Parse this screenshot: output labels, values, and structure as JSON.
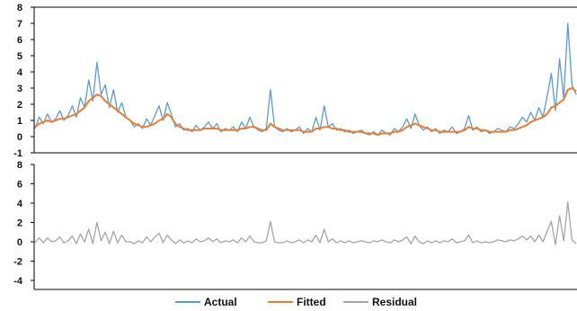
{
  "chart_data": [
    {
      "type": "line",
      "panel": "upper",
      "title": "",
      "xlabel": "",
      "ylabel": "",
      "ylim": [
        -1,
        8
      ],
      "yticks": [
        "8",
        "7",
        "6",
        "5",
        "4",
        "3",
        "2",
        "1",
        "0",
        "-1"
      ],
      "grid": false,
      "series": [
        {
          "name": "Actual",
          "color": "#5B9BD5",
          "values": [
            0.5,
            1.2,
            0.8,
            1.4,
            0.9,
            1.1,
            1.6,
            1.0,
            1.3,
            1.9,
            1.2,
            2.4,
            1.8,
            3.5,
            2.2,
            4.6,
            2.6,
            3.2,
            1.8,
            2.9,
            1.5,
            2.1,
            1.2,
            1.0,
            0.6,
            0.8,
            0.5,
            1.1,
            0.7,
            1.3,
            1.9,
            1.0,
            2.1,
            1.4,
            0.6,
            0.8,
            0.4,
            0.5,
            0.3,
            0.7,
            0.4,
            0.6,
            0.9,
            0.5,
            0.8,
            0.3,
            0.5,
            0.4,
            0.6,
            0.3,
            0.9,
            0.5,
            1.2,
            0.6,
            0.4,
            0.3,
            0.5,
            2.9,
            0.6,
            0.4,
            0.3,
            0.5,
            0.3,
            0.4,
            0.6,
            0.2,
            0.5,
            0.3,
            1.2,
            0.4,
            1.9,
            0.6,
            0.8,
            0.4,
            0.5,
            0.3,
            0.4,
            0.2,
            0.3,
            0.4,
            0.2,
            0.1,
            0.3,
            0.1,
            0.4,
            0.2,
            0.1,
            0.5,
            0.3,
            0.6,
            1.1,
            0.5,
            1.4,
            0.7,
            0.4,
            0.6,
            0.3,
            0.5,
            0.2,
            0.4,
            0.3,
            0.6,
            0.2,
            0.3,
            0.5,
            1.3,
            0.4,
            0.6,
            0.3,
            0.4,
            0.2,
            0.3,
            0.5,
            0.4,
            0.3,
            0.6,
            0.5,
            0.8,
            1.2,
            0.9,
            1.5,
            1.0,
            1.8,
            1.2,
            2.5,
            3.9,
            1.6,
            4.8,
            2.4,
            7.0,
            3.2,
            2.6
          ]
        },
        {
          "name": "Fitted",
          "color": "#ED7D31",
          "values": [
            0.6,
            0.8,
            0.9,
            1.0,
            0.9,
            1.0,
            1.1,
            1.1,
            1.2,
            1.3,
            1.4,
            1.6,
            1.8,
            2.2,
            2.4,
            2.6,
            2.5,
            2.2,
            2.0,
            1.8,
            1.6,
            1.4,
            1.2,
            1.0,
            0.8,
            0.7,
            0.6,
            0.6,
            0.7,
            0.8,
            1.0,
            1.1,
            1.4,
            1.2,
            0.8,
            0.6,
            0.5,
            0.4,
            0.4,
            0.4,
            0.4,
            0.5,
            0.5,
            0.5,
            0.5,
            0.4,
            0.4,
            0.4,
            0.4,
            0.4,
            0.5,
            0.5,
            0.6,
            0.6,
            0.5,
            0.4,
            0.4,
            0.8,
            0.6,
            0.5,
            0.4,
            0.4,
            0.4,
            0.4,
            0.4,
            0.3,
            0.3,
            0.3,
            0.5,
            0.5,
            0.6,
            0.6,
            0.5,
            0.5,
            0.4,
            0.4,
            0.3,
            0.3,
            0.3,
            0.3,
            0.2,
            0.2,
            0.2,
            0.1,
            0.2,
            0.2,
            0.2,
            0.3,
            0.3,
            0.4,
            0.6,
            0.7,
            0.8,
            0.7,
            0.6,
            0.5,
            0.4,
            0.4,
            0.3,
            0.3,
            0.3,
            0.3,
            0.3,
            0.3,
            0.4,
            0.6,
            0.5,
            0.5,
            0.4,
            0.4,
            0.3,
            0.3,
            0.3,
            0.3,
            0.3,
            0.4,
            0.4,
            0.5,
            0.6,
            0.7,
            0.9,
            1.0,
            1.1,
            1.2,
            1.4,
            1.8,
            1.9,
            2.1,
            2.3,
            2.9,
            3.0,
            2.8
          ]
        }
      ]
    },
    {
      "type": "line",
      "panel": "lower",
      "title": "",
      "xlabel": "",
      "ylabel": "",
      "ylim": [
        -4,
        8
      ],
      "yticks": [
        "8",
        "6",
        "4",
        "2",
        "0",
        "-2",
        "-4"
      ],
      "grid": false,
      "series": [
        {
          "name": "Residual",
          "color": "#A5A5A5",
          "values": [
            -0.1,
            0.4,
            -0.1,
            0.4,
            0.0,
            0.1,
            0.5,
            -0.1,
            0.1,
            0.6,
            -0.2,
            0.8,
            0.0,
            1.3,
            -0.2,
            2.0,
            0.1,
            1.0,
            -0.2,
            1.1,
            -0.1,
            0.7,
            0.0,
            0.0,
            -0.2,
            0.1,
            -0.1,
            0.5,
            0.0,
            0.5,
            0.9,
            -0.1,
            0.7,
            0.2,
            -0.2,
            0.2,
            -0.1,
            0.1,
            -0.1,
            0.3,
            0.0,
            0.1,
            0.4,
            0.0,
            0.3,
            -0.1,
            0.1,
            0.0,
            0.2,
            -0.1,
            0.4,
            0.0,
            0.6,
            0.0,
            -0.1,
            -0.1,
            0.1,
            2.1,
            0.0,
            -0.1,
            -0.1,
            0.1,
            -0.1,
            0.0,
            0.2,
            -0.1,
            0.2,
            0.0,
            0.7,
            -0.1,
            1.3,
            0.0,
            0.3,
            -0.1,
            0.1,
            -0.1,
            0.1,
            -0.1,
            0.0,
            0.1,
            0.0,
            -0.1,
            0.1,
            0.0,
            0.2,
            0.0,
            -0.1,
            0.2,
            0.0,
            0.2,
            0.5,
            -0.2,
            0.6,
            0.0,
            -0.2,
            0.1,
            -0.1,
            0.1,
            -0.1,
            0.1,
            0.0,
            0.3,
            -0.1,
            0.0,
            0.1,
            0.7,
            -0.1,
            0.1,
            -0.1,
            0.0,
            -0.1,
            0.0,
            0.2,
            0.1,
            0.0,
            0.2,
            0.1,
            0.3,
            0.6,
            0.2,
            0.6,
            0.0,
            0.7,
            0.0,
            1.1,
            2.1,
            -0.3,
            2.7,
            0.1,
            4.1,
            0.2,
            -0.2
          ]
        }
      ]
    }
  ],
  "legend": {
    "placement": "bottom",
    "items": [
      {
        "label": "Actual",
        "color": "#5B9BD5"
      },
      {
        "label": "Fitted",
        "color": "#ED7D31"
      },
      {
        "label": "Residual",
        "color": "#A5A5A5"
      }
    ]
  }
}
